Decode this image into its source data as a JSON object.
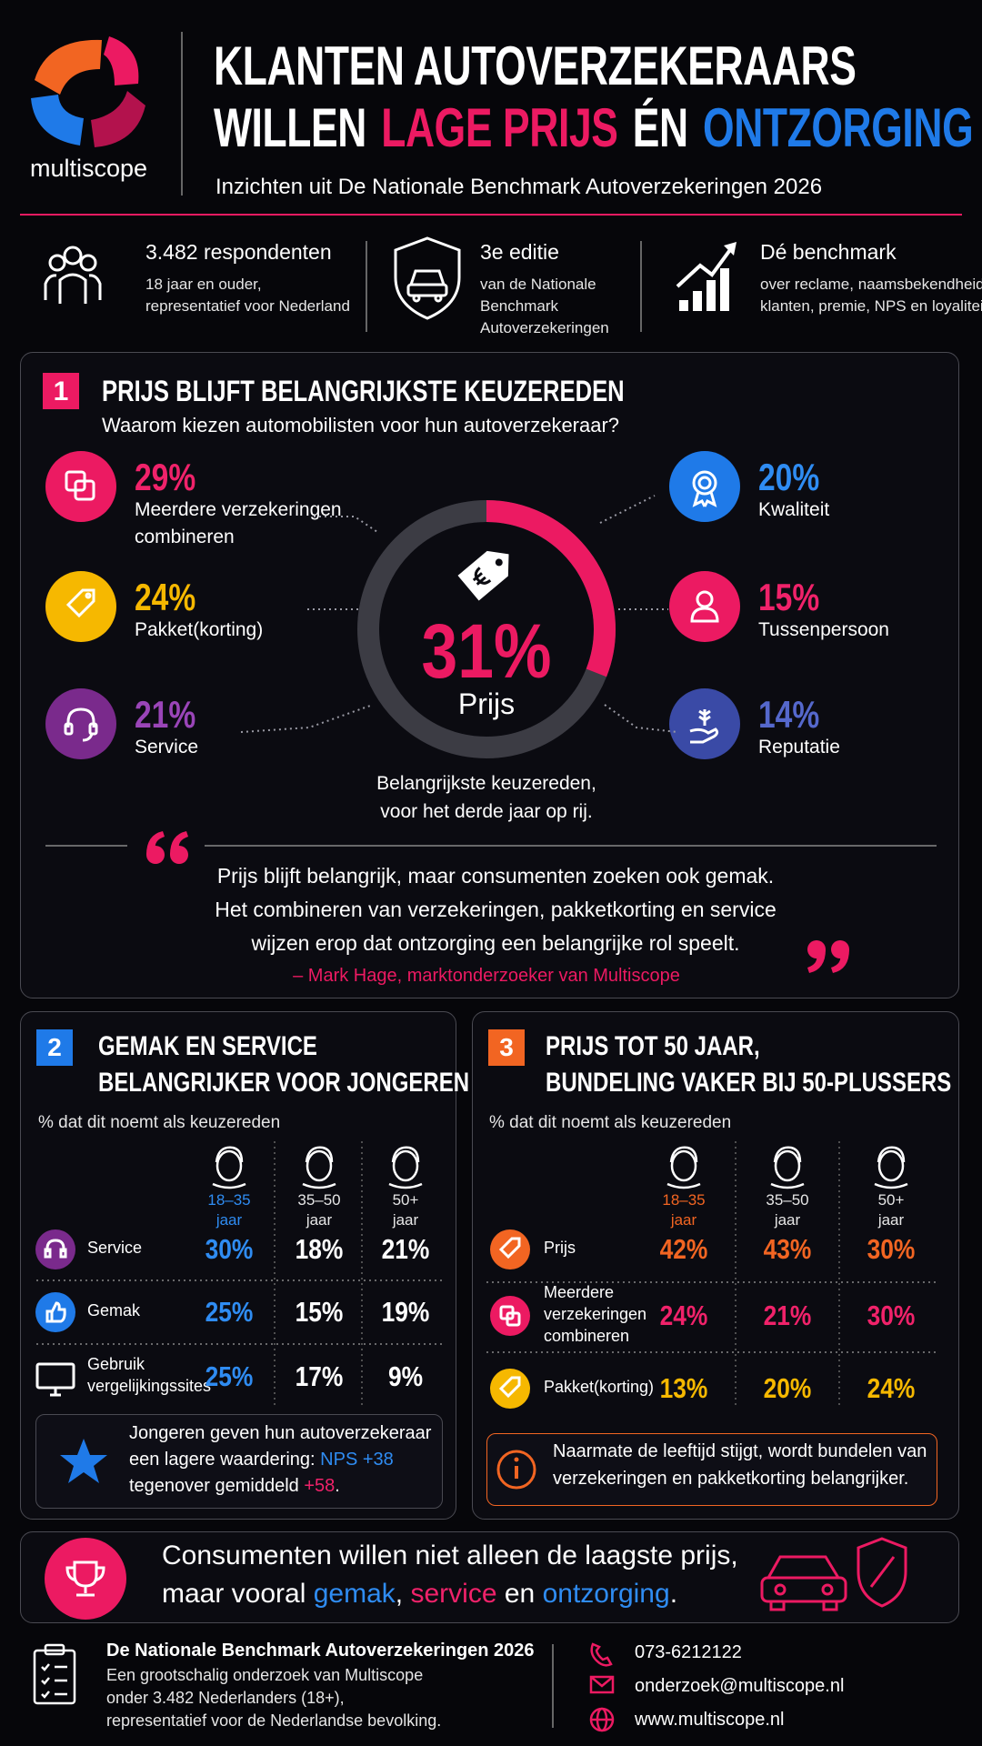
{
  "header": {
    "logo": "multiscope",
    "title_line1": "KLANTEN AUTOVERZEKERAARS",
    "title_line2": [
      "WILLEN",
      "LAGE PRIJS",
      "ÉN",
      "ONTZORGING"
    ],
    "subtitle": "Inzichten uit De Nationale Benchmark Autoverzekeringen 2026"
  },
  "stats": [
    {
      "title": "3.482 respondenten",
      "lines": [
        "18 jaar en ouder,",
        "representatief voor Nederland"
      ]
    },
    {
      "title": "3e editie",
      "lines": [
        "van de Nationale",
        "Benchmark",
        "Autoverzekeringen"
      ]
    },
    {
      "title": "Dé benchmark",
      "lines": [
        "over reclame, naamsbekendheid,",
        "klanten, premie, NPS en loyaliteit"
      ]
    }
  ],
  "section1": {
    "number": "1",
    "title": "PRIJS BLIJFT BELANGRIJKSTE KEUZEREDEN",
    "question": "Waarom kiezen automobilisten voor hun autoverzekeraar?",
    "reasons": [
      {
        "value": "29%",
        "lines": [
          "Meerdere verzekeringen",
          "combineren"
        ]
      },
      {
        "value": "24%",
        "lines": [
          "Pakket(korting)"
        ]
      },
      {
        "value": "21%",
        "lines": [
          "Service"
        ]
      },
      {
        "value": "20%",
        "lines": [
          "Kwaliteit"
        ]
      },
      {
        "value": "15%",
        "lines": [
          "Tussenpersoon"
        ]
      },
      {
        "value": "14%",
        "lines": [
          "Reputatie"
        ]
      }
    ],
    "center": {
      "value": "31%",
      "label": "Prijs"
    },
    "caption": [
      "Belangrijkste keuzereden,",
      "voor het derde jaar op rij."
    ],
    "quote": {
      "lines": [
        "Prijs blijft belangrijk, maar consumenten zoeken ook gemak.",
        "Het combineren van verzekeringen, pakketkorting en service",
        "wijzen erop dat ontzorging een belangrijke rol speelt."
      ],
      "author": "– Mark Hage, marktonderzoeker van Multiscope"
    }
  },
  "section2": {
    "number": "2",
    "title": [
      "GEMAK EN SERVICE",
      "BELANGRIJKER VOOR JONGEREN"
    ],
    "subtitle": "% dat dit noemt als keuzereden",
    "groups": [
      [
        "18–35",
        "jaar"
      ],
      [
        "35–50",
        "jaar"
      ],
      [
        "50+",
        "jaar"
      ]
    ],
    "rows": [
      {
        "label": [
          "Service"
        ],
        "values": [
          "30%",
          "18%",
          "21%"
        ]
      },
      {
        "label": [
          "Gemak"
        ],
        "values": [
          "25%",
          "15%",
          "19%"
        ]
      },
      {
        "label": [
          "Gebruik",
          "vergelijkingssites"
        ],
        "values": [
          "25%",
          "17%",
          "9%"
        ]
      }
    ],
    "note": [
      [
        "Jongeren geven hun autoverzekeraar"
      ],
      [
        "een lagere waardering:",
        "NPS +38"
      ],
      [
        "tegenover gemiddeld",
        "+58",
        "."
      ]
    ]
  },
  "section3": {
    "number": "3",
    "title": [
      "PRIJS TOT 50 JAAR,",
      "BUNDELING VAKER BIJ 50-PLUSSERS"
    ],
    "subtitle": "% dat dit noemt als keuzereden",
    "groups": [
      [
        "18–35",
        "jaar"
      ],
      [
        "35–50",
        "jaar"
      ],
      [
        "50+",
        "jaar"
      ]
    ],
    "rows": [
      {
        "label": [
          "Prijs"
        ],
        "values": [
          "42%",
          "43%",
          "30%"
        ]
      },
      {
        "label": [
          "Meerdere",
          "verzekeringen",
          "combineren"
        ],
        "values": [
          "24%",
          "21%",
          "30%"
        ]
      },
      {
        "label": [
          "Pakket(korting)"
        ],
        "values": [
          "13%",
          "20%",
          "24%"
        ]
      }
    ],
    "note": [
      "Naarmate de leeftijd stijgt, wordt bundelen van",
      "verzekeringen en pakketkorting belangrijker."
    ]
  },
  "banner": [
    [
      "Consumenten willen niet alleen de laagste prijs,"
    ],
    [
      "maar vooral",
      "gemak",
      ",",
      "service",
      "en",
      "ontzorging",
      "."
    ]
  ],
  "footer": {
    "title": "De Nationale Benchmark Autoverzekeringen 2026",
    "lines": [
      "Een grootschalig onderzoek van Multiscope",
      "onder 3.482 Nederlanders (18+),",
      "representatief voor de Nederlandse bevolking."
    ],
    "contacts": [
      "073-6212122",
      "onderzoek@multiscope.nl",
      "www.multiscope.nl"
    ]
  }
}
